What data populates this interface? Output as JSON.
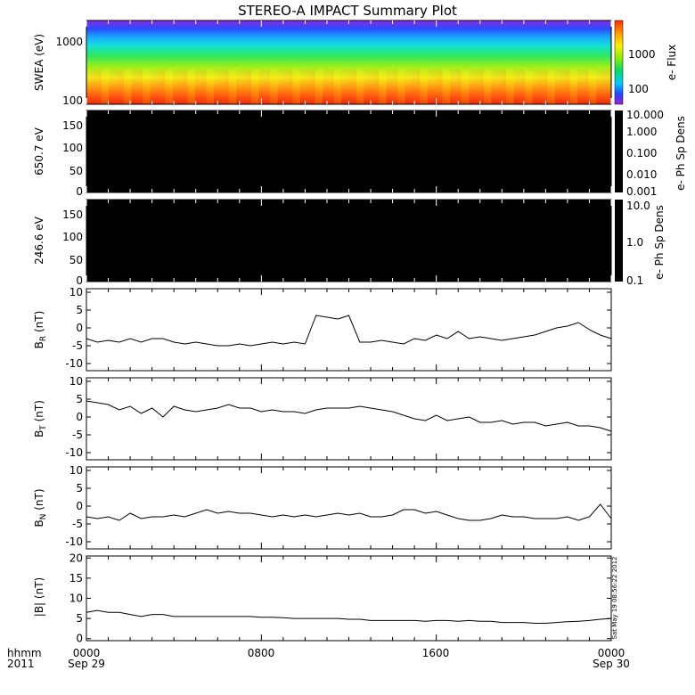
{
  "title": "STEREO-A IMPACT Summary Plot",
  "stamp": "Sat May 19 08:56:22 2012",
  "x_axis": {
    "time_labels": [
      "0000",
      "0800",
      "1600",
      "0000"
    ],
    "date_labels": [
      "Sep 29",
      "Sep 30"
    ],
    "left_label_1": "hhmm",
    "left_label_2": "2011"
  },
  "colors": {
    "trace": "#000000",
    "panel_fill": "#000000",
    "background": "#ffffff"
  },
  "chart_data": [
    {
      "type": "heatmap",
      "name": "swea",
      "ylabel": "SWEA (eV)",
      "y_scale": "log",
      "ylim": [
        90,
        2000
      ],
      "y_ticks": [
        "1000",
        "100"
      ],
      "x_hours": [
        0,
        24
      ],
      "colorbar": {
        "label": "e- Flux",
        "scale": "log",
        "range": [
          30,
          6000
        ],
        "ticks": [
          "1000",
          "100"
        ]
      },
      "description_values": {
        "flux_high_energy_edge": 30,
        "flux_low_energy_edge": 6000
      }
    },
    {
      "type": "heatmap",
      "name": "pad_650",
      "ylabel": "650.7 eV",
      "ylim": [
        0,
        180
      ],
      "y_ticks": [
        "150",
        "100",
        "50",
        "0"
      ],
      "colorbar": {
        "label": "e- Ph Sp Dens",
        "scale": "log",
        "ticks": [
          "10.000",
          "1.000",
          "0.100",
          "0.010",
          "0.001"
        ]
      }
    },
    {
      "type": "heatmap",
      "name": "pad_246",
      "ylabel": "246.6 eV",
      "ylim": [
        0,
        180
      ],
      "y_ticks": [
        "150",
        "100",
        "50",
        "0"
      ],
      "colorbar": {
        "label": "e- Ph Sp Dens",
        "scale": "log",
        "ticks": [
          "10.0",
          "1.0",
          "0.1"
        ]
      }
    },
    {
      "type": "line",
      "name": "br",
      "ylabel_main": "B",
      "ylabel_sub": "R",
      "ylabel_unit": " (nT)",
      "ylim": [
        -12,
        11
      ],
      "y_ticks": [
        "10",
        "5",
        "0",
        "-5",
        "-10"
      ],
      "x": [
        0,
        0.5,
        1,
        1.5,
        2,
        2.5,
        3,
        3.5,
        4,
        4.5,
        5,
        5.5,
        6,
        6.5,
        7,
        7.5,
        8,
        8.5,
        9,
        9.5,
        10,
        10.5,
        11,
        11.5,
        12,
        12.5,
        13,
        13.5,
        14,
        14.5,
        15,
        15.5,
        16,
        16.5,
        17,
        17.5,
        18,
        18.5,
        19,
        19.5,
        20,
        20.5,
        21,
        21.5,
        22,
        22.5,
        23,
        23.5,
        24
      ],
      "y": [
        -3,
        -4,
        -3.5,
        -4,
        -3,
        -4,
        -3,
        -3,
        -4,
        -4.5,
        -4,
        -4.5,
        -5,
        -5,
        -4.5,
        -5,
        -4.5,
        -4,
        -4.5,
        -4,
        -4.5,
        3.5,
        3,
        2.5,
        3.5,
        -4,
        -4,
        -3.5,
        -4,
        -4.5,
        -3,
        -3.5,
        -2,
        -3,
        -1,
        -3,
        -2.5,
        -3,
        -3.5,
        -3,
        -2.5,
        -2,
        -1,
        0,
        0.5,
        1.5,
        -0.5,
        -2,
        -3
      ]
    },
    {
      "type": "line",
      "name": "bt",
      "ylabel_main": "B",
      "ylabel_sub": "T",
      "ylabel_unit": " (nT)",
      "ylim": [
        -12,
        11
      ],
      "y_ticks": [
        "10",
        "5",
        "0",
        "-5",
        "-10"
      ],
      "x": [
        0,
        0.5,
        1,
        1.5,
        2,
        2.5,
        3,
        3.5,
        4,
        4.5,
        5,
        5.5,
        6,
        6.5,
        7,
        7.5,
        8,
        8.5,
        9,
        9.5,
        10,
        10.5,
        11,
        11.5,
        12,
        12.5,
        13,
        13.5,
        14,
        14.5,
        15,
        15.5,
        16,
        16.5,
        17,
        17.5,
        18,
        18.5,
        19,
        19.5,
        20,
        20.5,
        21,
        21.5,
        22,
        22.5,
        23,
        23.5,
        24
      ],
      "y": [
        4.5,
        4,
        3.5,
        2,
        3,
        1,
        2.5,
        0,
        3,
        2,
        1.5,
        2,
        2.5,
        3.5,
        2.5,
        2.5,
        1.5,
        2,
        1.5,
        1.5,
        1,
        2,
        2.5,
        2.5,
        2.5,
        3,
        2.5,
        2,
        1.5,
        0.5,
        -0.5,
        -1,
        0.5,
        -1,
        -0.5,
        0,
        -1.5,
        -1.5,
        -1,
        -2,
        -1.5,
        -1.5,
        -2.5,
        -2,
        -1.5,
        -2.5,
        -2.5,
        -3,
        -4
      ]
    },
    {
      "type": "line",
      "name": "bn",
      "ylabel_main": "B",
      "ylabel_sub": "N",
      "ylabel_unit": " (nT)",
      "ylim": [
        -12,
        11
      ],
      "y_ticks": [
        "10",
        "5",
        "0",
        "-5",
        "-10"
      ],
      "x": [
        0,
        0.5,
        1,
        1.5,
        2,
        2.5,
        3,
        3.5,
        4,
        4.5,
        5,
        5.5,
        6,
        6.5,
        7,
        7.5,
        8,
        8.5,
        9,
        9.5,
        10,
        10.5,
        11,
        11.5,
        12,
        12.5,
        13,
        13.5,
        14,
        14.5,
        15,
        15.5,
        16,
        16.5,
        17,
        17.5,
        18,
        18.5,
        19,
        19.5,
        20,
        20.5,
        21,
        21.5,
        22,
        22.5,
        23,
        23.5,
        24
      ],
      "y": [
        -3,
        -3.5,
        -3,
        -4,
        -2,
        -3.5,
        -3,
        -3,
        -2.5,
        -3,
        -2,
        -1,
        -2,
        -1.5,
        -2,
        -2,
        -2.5,
        -3,
        -2.5,
        -3,
        -2.5,
        -3,
        -2.5,
        -2,
        -2.5,
        -2,
        -3,
        -3,
        -2.5,
        -1,
        -1,
        -2,
        -1.5,
        -2.5,
        -3.5,
        -4,
        -4,
        -3.5,
        -2.5,
        -3,
        -3,
        -3.5,
        -3.5,
        -3.5,
        -3,
        -4,
        -3,
        0.5,
        -3.5
      ]
    },
    {
      "type": "line",
      "name": "bmag",
      "ylabel_main": "|B|",
      "ylabel_sub": "",
      "ylabel_unit": " (nT)",
      "ylim": [
        -0.5,
        20.5
      ],
      "y_ticks": [
        "20",
        "15",
        "10",
        "5",
        "0"
      ],
      "x": [
        0,
        0.5,
        1,
        1.5,
        2,
        2.5,
        3,
        3.5,
        4,
        4.5,
        5,
        5.5,
        6,
        6.5,
        7,
        7.5,
        8,
        8.5,
        9,
        9.5,
        10,
        10.5,
        11,
        11.5,
        12,
        12.5,
        13,
        13.5,
        14,
        14.5,
        15,
        15.5,
        16,
        16.5,
        17,
        17.5,
        18,
        18.5,
        19,
        19.5,
        20,
        20.5,
        21,
        21.5,
        22,
        22.5,
        23,
        23.5,
        24
      ],
      "y": [
        6.5,
        7,
        6.5,
        6.5,
        6,
        5.5,
        6,
        6,
        5.5,
        5.5,
        5.5,
        5.5,
        5.5,
        5.5,
        5.5,
        5.5,
        5.3,
        5.3,
        5.2,
        5,
        5,
        5,
        5,
        5,
        4.8,
        4.8,
        4.5,
        4.5,
        4.5,
        4.5,
        4.5,
        4.3,
        4.5,
        4.5,
        4.3,
        4.5,
        4.3,
        4.3,
        4,
        4,
        4,
        3.8,
        3.8,
        4,
        4.2,
        4.3,
        4.5,
        4.8,
        5
      ]
    }
  ]
}
